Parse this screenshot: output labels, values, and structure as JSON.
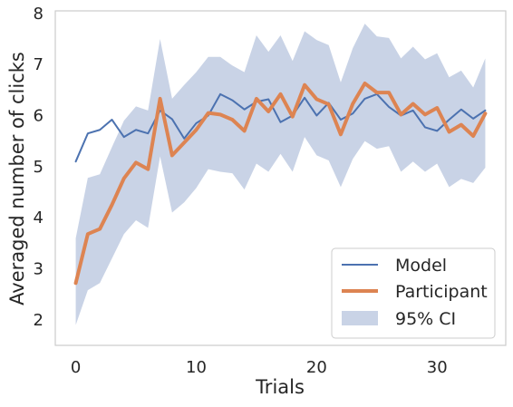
{
  "chart_data": {
    "type": "line",
    "title": "",
    "xlabel": "Trials",
    "ylabel": "Averaged number of clicks",
    "xlim": [
      -1.7,
      35.7
    ],
    "ylim": [
      1.5,
      8.05
    ],
    "xticks": [
      0,
      10,
      20,
      30
    ],
    "yticks": [
      2,
      3,
      4,
      5,
      6,
      7,
      8
    ],
    "grid": false,
    "legend_position": "lower-right",
    "x": [
      0,
      1,
      2,
      3,
      4,
      5,
      6,
      7,
      8,
      9,
      10,
      11,
      12,
      13,
      14,
      15,
      16,
      17,
      18,
      19,
      20,
      21,
      22,
      23,
      24,
      25,
      26,
      27,
      28,
      29,
      30,
      31,
      32,
      33,
      34
    ],
    "series": [
      {
        "name": "Model",
        "color": "#4c72b0",
        "values": [
          5.1,
          5.65,
          5.72,
          5.92,
          5.58,
          5.72,
          5.65,
          6.1,
          5.93,
          5.55,
          5.85,
          6.0,
          6.42,
          6.3,
          6.12,
          6.27,
          6.32,
          5.87,
          6.0,
          6.35,
          6.0,
          6.25,
          5.92,
          6.04,
          6.33,
          6.42,
          6.17,
          6.0,
          6.1,
          5.77,
          5.7,
          5.92,
          6.12,
          5.94,
          6.1
        ]
      },
      {
        "name": "Participant",
        "color": "#dd8452",
        "values": [
          2.72,
          3.68,
          3.78,
          4.25,
          4.77,
          5.08,
          4.95,
          6.33,
          5.22,
          5.47,
          5.72,
          6.05,
          6.02,
          5.92,
          5.7,
          6.33,
          6.08,
          6.42,
          5.98,
          6.6,
          6.32,
          6.22,
          5.63,
          6.23,
          6.63,
          6.45,
          6.45,
          6.02,
          6.23,
          6.02,
          6.15,
          5.68,
          5.82,
          5.6,
          6.04
        ]
      }
    ],
    "confidence_interval": {
      "name": "95% CI",
      "color": "#c9d3e6",
      "lower": [
        1.9,
        2.58,
        2.72,
        3.2,
        3.68,
        3.95,
        3.8,
        5.2,
        4.1,
        4.3,
        4.58,
        4.95,
        4.9,
        4.87,
        4.55,
        5.06,
        4.9,
        5.25,
        4.9,
        5.58,
        5.22,
        5.12,
        4.6,
        5.15,
        5.5,
        5.35,
        5.4,
        4.9,
        5.1,
        4.9,
        5.06,
        4.6,
        4.76,
        4.68,
        4.98
      ],
      "upper": [
        3.6,
        4.78,
        4.85,
        5.38,
        5.9,
        6.18,
        6.1,
        7.5,
        6.33,
        6.6,
        6.85,
        7.15,
        7.15,
        6.98,
        6.85,
        7.57,
        7.25,
        7.57,
        7.07,
        7.65,
        7.48,
        7.38,
        6.65,
        7.32,
        7.8,
        7.55,
        7.52,
        7.12,
        7.35,
        7.1,
        7.22,
        6.75,
        6.88,
        6.55,
        7.12
      ]
    }
  }
}
